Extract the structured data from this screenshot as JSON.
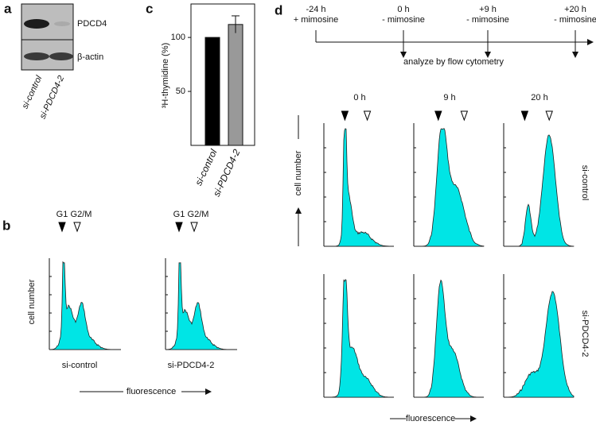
{
  "panel_a": {
    "label": "a",
    "bands": [
      "PDCD4",
      "β-actin"
    ],
    "lanes": [
      "si-control",
      "si-PDCD4-2"
    ]
  },
  "panel_b": {
    "label": "b",
    "markers": [
      "G1",
      "G2/M"
    ],
    "y_label": "cell number",
    "x_label": "fluorescence",
    "samples": [
      "si-control",
      "si-PDCD4-2"
    ]
  },
  "chart_data": {
    "type": "bar",
    "label": "c",
    "y_label": "³H-thymidine (%)",
    "categories": [
      "si-control",
      "si-PDCD4-2"
    ],
    "values": [
      100,
      112
    ],
    "errors": [
      null,
      8
    ],
    "colors": [
      "#000000",
      "#999999"
    ],
    "ylim": [
      0,
      131
    ],
    "yticks": [
      50,
      100
    ]
  },
  "panel_d": {
    "label": "d",
    "timeline": [
      [
        "-24 h",
        "+ mimosine"
      ],
      [
        "0 h",
        "- mimosine"
      ],
      [
        "+9 h",
        "- mimosine"
      ],
      [
        "+20 h",
        "- mimosine"
      ]
    ],
    "analysis": "analyze by flow cytometry",
    "columns": [
      "0 h",
      "9 h",
      "20 h"
    ],
    "rows": [
      "si-control",
      "si-PDCD4-2"
    ],
    "y_label": "cell number",
    "x_label": "fluorescence"
  }
}
